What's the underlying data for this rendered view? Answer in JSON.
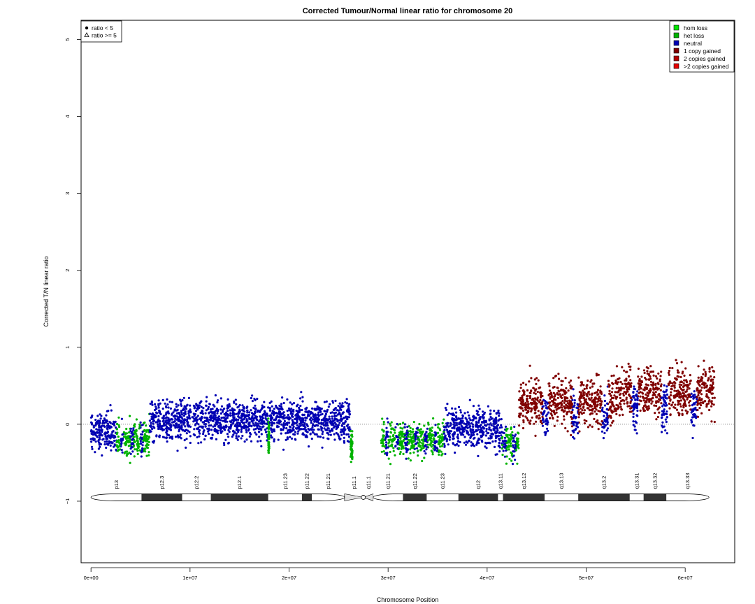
{
  "chart_data": {
    "type": "scatter",
    "title": "Corrected Tumour/Normal linear ratio for chromosome  20",
    "xlabel": "Chromosome Position",
    "ylabel": "Corrected T/N linear ratio",
    "xlim": [
      -1000000,
      65000000
    ],
    "ylim": [
      -1.8,
      5.25
    ],
    "x_ticks": [
      0,
      10000000,
      20000000,
      30000000,
      40000000,
      50000000,
      60000000
    ],
    "x_tick_labels": [
      "0e+00",
      "1e+07",
      "2e+07",
      "3e+07",
      "4e+07",
      "5e+07",
      "6e+07"
    ],
    "y_ticks": [
      -1,
      0,
      1,
      2,
      3,
      4,
      5
    ],
    "y_tick_labels": [
      "−1",
      "0",
      "1",
      "2",
      "3",
      "4",
      "5"
    ],
    "reference_line_y": 0,
    "shape_legend": {
      "placement": "top-left",
      "entries": [
        {
          "symbol": "filled-circle",
          "label": "ratio < 5"
        },
        {
          "symbol": "open-triangle",
          "label": "ratio >= 5"
        }
      ]
    },
    "legend": {
      "placement": "top-right",
      "entries": [
        {
          "label": "hom loss",
          "color": "#00e600"
        },
        {
          "label": "het loss",
          "color": "#00b300"
        },
        {
          "label": "neutral",
          "color": "#0000b3"
        },
        {
          "label": "1 copy gained",
          "color": "#800000"
        },
        {
          "label": "2 copies gained",
          "color": "#b30000"
        },
        {
          "label": ">2 copies gained",
          "color": "#e60000"
        }
      ]
    },
    "colors": {
      "neutral": "#0000b3",
      "het_loss": "#00b300",
      "gain": "#800000"
    },
    "segments": [
      {
        "start": 0,
        "end": 2600000,
        "state": "neutral",
        "mean": -0.1,
        "spread": 0.25
      },
      {
        "start": 2600000,
        "end": 5900000,
        "state": "mixed_loss",
        "mean": -0.2,
        "spread": 0.22
      },
      {
        "start": 5900000,
        "end": 17900000,
        "state": "neutral",
        "mean": 0.05,
        "spread": 0.25
      },
      {
        "start": 17900000,
        "end": 18000000,
        "state": "het_loss",
        "mean": -0.15,
        "spread": 0.2
      },
      {
        "start": 18000000,
        "end": 26200000,
        "state": "neutral",
        "mean": 0.05,
        "spread": 0.25
      },
      {
        "start": 26200000,
        "end": 26400000,
        "state": "het_loss",
        "mean": -0.3,
        "spread": 0.2
      },
      {
        "start": 29300000,
        "end": 35800000,
        "state": "mixed_loss",
        "mean": -0.2,
        "spread": 0.22
      },
      {
        "start": 35800000,
        "end": 41500000,
        "state": "neutral",
        "mean": -0.05,
        "spread": 0.25
      },
      {
        "start": 41500000,
        "end": 43200000,
        "state": "mixed_loss",
        "mean": -0.25,
        "spread": 0.22
      },
      {
        "start": 43200000,
        "end": 53000000,
        "state": "mixed_gain",
        "mean": 0.3,
        "spread": 0.3
      },
      {
        "start": 53000000,
        "end": 63000000,
        "state": "mixed_gain",
        "mean": 0.42,
        "spread": 0.3
      }
    ],
    "ideogram": {
      "y": -0.95,
      "bands": [
        {
          "name": "p13",
          "start": 0,
          "end": 5100000,
          "stain": "gneg"
        },
        {
          "name": "p12.3",
          "start": 5100000,
          "end": 9200000,
          "stain": "gpos"
        },
        {
          "name": "p12.2",
          "start": 9200000,
          "end": 12100000,
          "stain": "gneg"
        },
        {
          "name": "p12.1",
          "start": 12100000,
          "end": 17900000,
          "stain": "gpos"
        },
        {
          "name": "p11.23",
          "start": 17900000,
          "end": 21300000,
          "stain": "gneg"
        },
        {
          "name": "p11.22",
          "start": 21300000,
          "end": 22300000,
          "stain": "gpos"
        },
        {
          "name": "p11.21",
          "start": 22300000,
          "end": 25600000,
          "stain": "gneg"
        },
        {
          "name": "p11.1",
          "start": 25600000,
          "end": 27500000,
          "stain": "acen"
        },
        {
          "name": "q11.1",
          "start": 27500000,
          "end": 28500000,
          "stain": "acen"
        },
        {
          "name": "q11.21",
          "start": 28500000,
          "end": 31500000,
          "stain": "gneg"
        },
        {
          "name": "q11.22",
          "start": 31500000,
          "end": 33900000,
          "stain": "gpos"
        },
        {
          "name": "q11.23",
          "start": 33900000,
          "end": 37100000,
          "stain": "gneg"
        },
        {
          "name": "q12",
          "start": 37100000,
          "end": 41100000,
          "stain": "gpos"
        },
        {
          "name": "q13.11",
          "start": 41100000,
          "end": 41600000,
          "stain": "gneg"
        },
        {
          "name": "q13.12",
          "start": 41600000,
          "end": 45800000,
          "stain": "gpos"
        },
        {
          "name": "q13.13",
          "start": 45800000,
          "end": 49200000,
          "stain": "gneg"
        },
        {
          "name": "q13.2",
          "start": 49200000,
          "end": 54400000,
          "stain": "gpos"
        },
        {
          "name": "q13.31",
          "start": 54400000,
          "end": 55800000,
          "stain": "gneg"
        },
        {
          "name": "q13.32",
          "start": 55800000,
          "end": 58100000,
          "stain": "gpos"
        },
        {
          "name": "q13.33",
          "start": 58100000,
          "end": 62400000,
          "stain": "gneg"
        }
      ]
    }
  }
}
